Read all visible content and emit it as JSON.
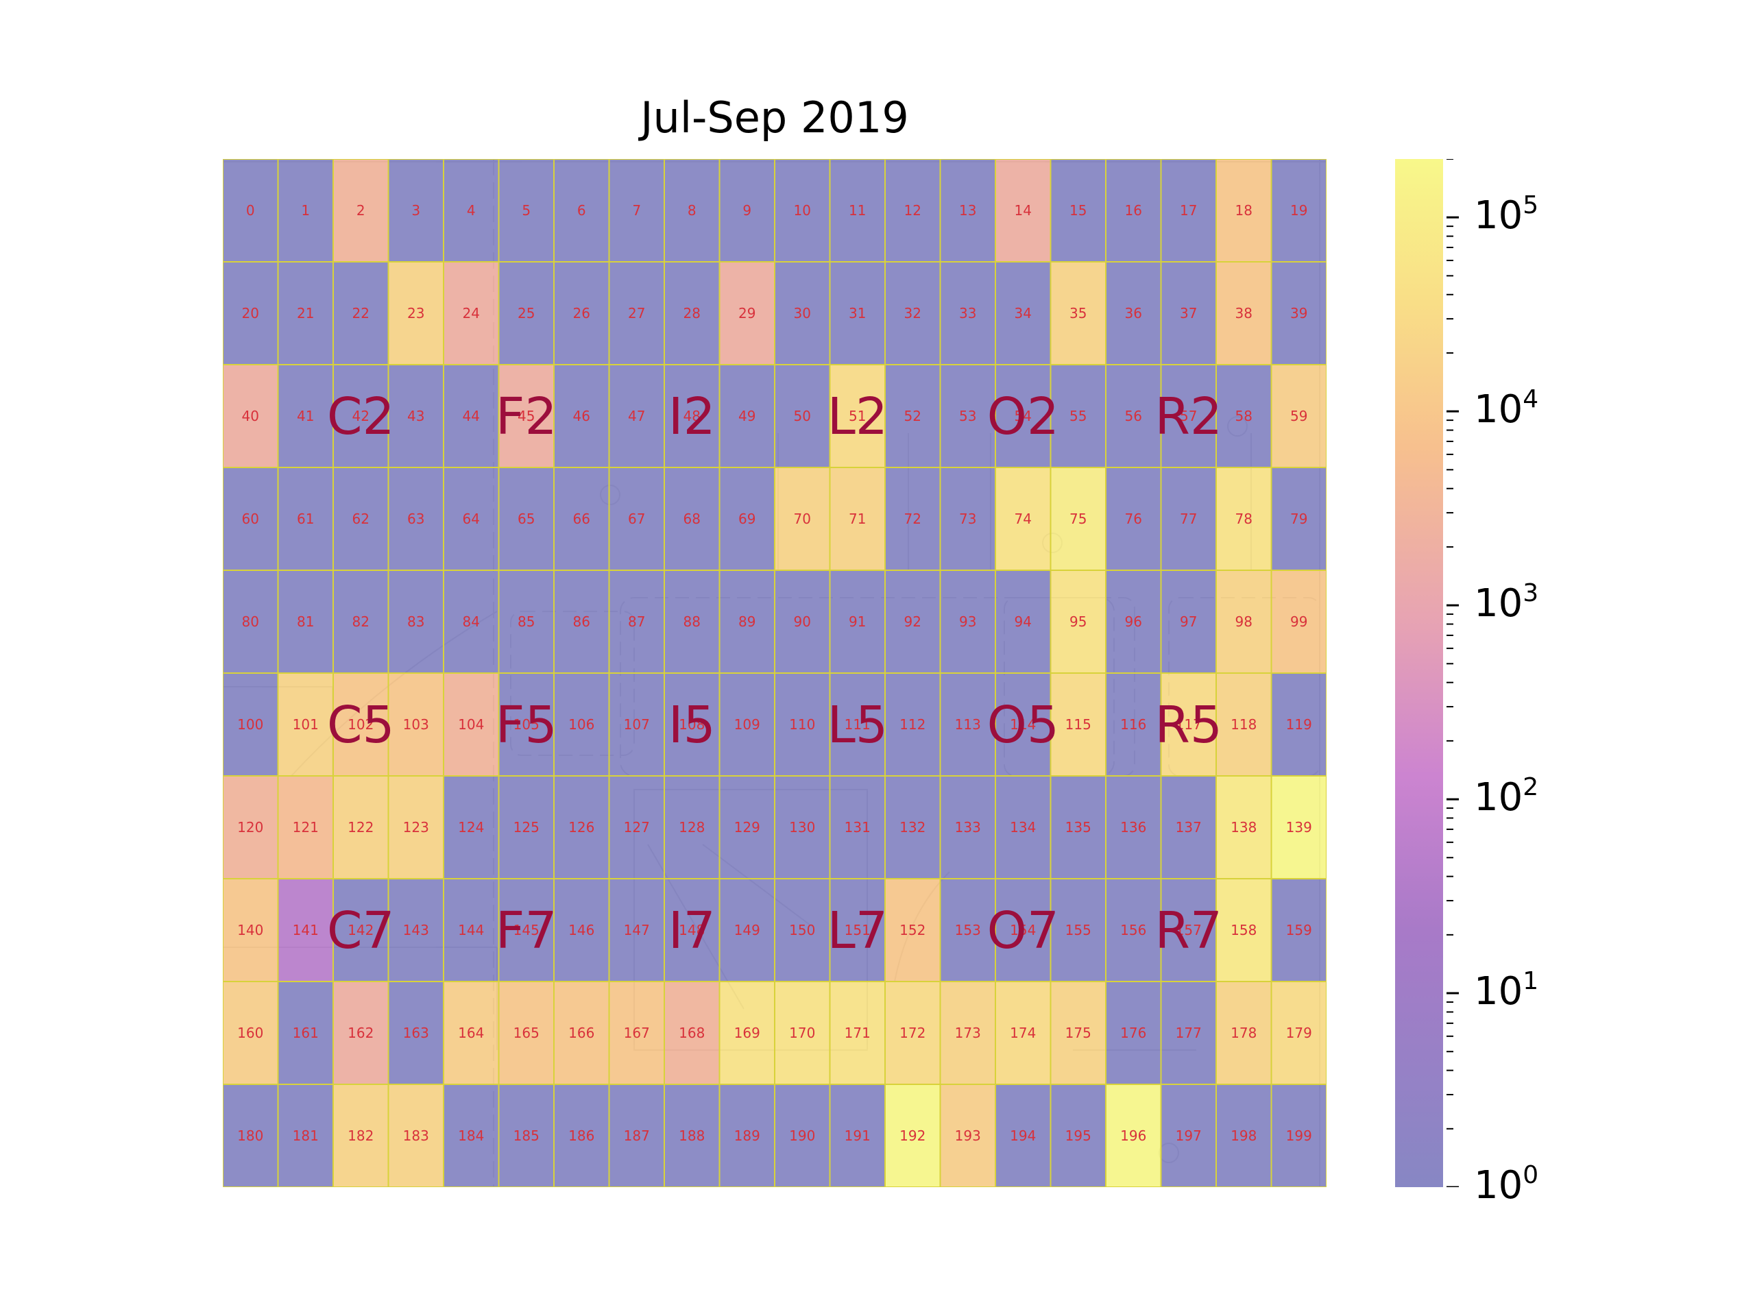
{
  "chart_data": {
    "type": "heatmap",
    "title": "Jul-Sep 2019",
    "grid": {
      "rows": 10,
      "cols": 20
    },
    "scale": "log",
    "colorbar": {
      "range": [
        1,
        200000
      ],
      "ticks": [
        {
          "value": 1,
          "base": "10",
          "exp": "0"
        },
        {
          "value": 10,
          "base": "10",
          "exp": "1"
        },
        {
          "value": 100,
          "base": "10",
          "exp": "2"
        },
        {
          "value": 1000,
          "base": "10",
          "exp": "3"
        },
        {
          "value": 10000,
          "base": "10",
          "exp": "4"
        },
        {
          "value": 100000,
          "base": "10",
          "exp": "5"
        }
      ],
      "colormap": "plasma"
    },
    "background": "floor plan drawing",
    "zone_labels": [
      {
        "label": "C2",
        "cell": 42
      },
      {
        "label": "F2",
        "cell": 45
      },
      {
        "label": "I2",
        "cell": 48
      },
      {
        "label": "L2",
        "cell": 51
      },
      {
        "label": "O2",
        "cell": 54
      },
      {
        "label": "R2",
        "cell": 57
      },
      {
        "label": "C5",
        "cell": 102
      },
      {
        "label": "F5",
        "cell": 105
      },
      {
        "label": "I5",
        "cell": 108
      },
      {
        "label": "L5",
        "cell": 111
      },
      {
        "label": "O5",
        "cell": 114
      },
      {
        "label": "R5",
        "cell": 117
      },
      {
        "label": "C7",
        "cell": 142
      },
      {
        "label": "F7",
        "cell": 145
      },
      {
        "label": "I7",
        "cell": 148
      },
      {
        "label": "L7",
        "cell": 151
      },
      {
        "label": "O7",
        "cell": 154
      },
      {
        "label": "R7",
        "cell": 157
      }
    ],
    "cells": [
      1,
      1,
      3000,
      1,
      1,
      1,
      1,
      1,
      1,
      1,
      1,
      1,
      1,
      1,
      2000,
      1,
      1,
      1,
      10000,
      1,
      1,
      1,
      1,
      20000,
      2000,
      1,
      1,
      1,
      1,
      2000,
      1,
      1,
      1,
      1,
      1,
      20000,
      1,
      1,
      10000,
      1,
      2000,
      1,
      1,
      1,
      1,
      2000,
      1,
      1,
      1,
      1,
      1,
      30000,
      1,
      1,
      1,
      1,
      1,
      1,
      1,
      15000,
      1,
      1,
      1,
      1,
      1,
      1,
      1,
      1,
      1,
      1,
      20000,
      20000,
      1,
      1,
      50000,
      100000,
      1,
      1,
      50000,
      1,
      1,
      1,
      1,
      1,
      1,
      1,
      1,
      1,
      1,
      1,
      1,
      1,
      1,
      1,
      1,
      50000,
      1,
      1,
      20000,
      10000,
      1,
      20000,
      10000,
      10000,
      3000,
      1,
      1,
      1,
      1,
      1,
      1,
      1,
      1,
      1,
      1,
      30000,
      1,
      30000,
      20000,
      1,
      3000,
      5000,
      20000,
      20000,
      1,
      1,
      1,
      1,
      1,
      1,
      1,
      1,
      1,
      1,
      1,
      1,
      1,
      1,
      80000,
      200000,
      10000,
      50,
      1,
      1,
      1,
      1,
      1,
      1,
      1,
      1,
      1,
      1,
      10000,
      1,
      1,
      1,
      1,
      1,
      80000,
      1,
      15000,
      1,
      2000,
      1,
      15000,
      10000,
      10000,
      10000,
      3000,
      50000,
      50000,
      50000,
      30000,
      20000,
      30000,
      20000,
      1,
      1,
      20000,
      30000,
      1,
      1,
      20000,
      20000,
      1,
      1,
      1,
      1,
      1,
      1,
      1,
      1,
      200000,
      15000,
      1,
      1,
      200000,
      1,
      1,
      1
    ]
  }
}
